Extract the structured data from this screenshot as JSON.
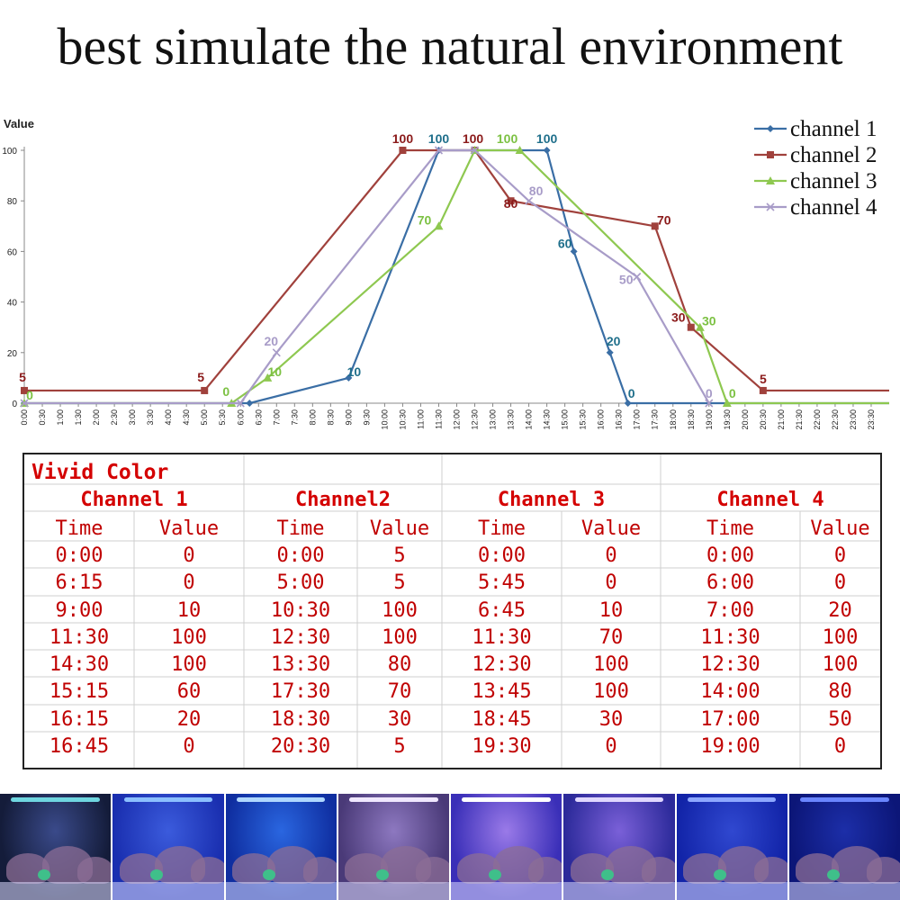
{
  "headline": "best simulate the natural environment",
  "chart_data": {
    "type": "line",
    "ylabel": "Value",
    "xlabel": "",
    "ylim": [
      0,
      100
    ],
    "yticks": [
      0,
      20,
      40,
      60,
      80,
      100
    ],
    "x_ticks": [
      "0:00",
      "0:30",
      "1:00",
      "1:30",
      "2:00",
      "2:30",
      "3:00",
      "3:30",
      "4:00",
      "4:30",
      "5:00",
      "5:30",
      "6:00",
      "6:30",
      "7:00",
      "7:30",
      "8:00",
      "8:30",
      "9:00",
      "9:30",
      "10:00",
      "10:30",
      "11:00",
      "11:30",
      "12:00",
      "12:30",
      "13:00",
      "13:30",
      "14:00",
      "14:30",
      "15:00",
      "15:30",
      "16:00",
      "16:30",
      "17:00",
      "17:30",
      "18:00",
      "18:30",
      "19:00",
      "19:30",
      "20:00",
      "20:30",
      "21:00",
      "21:30",
      "22:00",
      "22:30",
      "23:00",
      "23:30"
    ],
    "legend_position": "top-right",
    "grid": false,
    "series": [
      {
        "name": "channel 1",
        "color": "#3a6ea5",
        "marker": "diamond",
        "x": [
          "0:00",
          "6:15",
          "9:00",
          "11:30",
          "14:30",
          "15:15",
          "16:15",
          "16:45",
          "23:59"
        ],
        "y": [
          0,
          0,
          10,
          100,
          100,
          60,
          20,
          0,
          0
        ],
        "labels": [
          "",
          "",
          "10",
          "100",
          "100",
          "60",
          "20",
          "0",
          ""
        ],
        "label_color": "#1f6f8b"
      },
      {
        "name": "channel 2",
        "color": "#a0413c",
        "marker": "square",
        "x": [
          "0:00",
          "5:00",
          "10:30",
          "12:30",
          "13:30",
          "17:30",
          "18:30",
          "20:30",
          "23:59"
        ],
        "y": [
          5,
          5,
          100,
          100,
          80,
          70,
          30,
          5,
          5
        ],
        "labels": [
          "5",
          "5",
          "100",
          "100",
          "80",
          "70",
          "30",
          "5",
          ""
        ],
        "label_color": "#8b1a1a"
      },
      {
        "name": "channel 3",
        "color": "#8ec850",
        "marker": "triangle",
        "x": [
          "0:00",
          "5:45",
          "6:45",
          "11:30",
          "12:30",
          "13:45",
          "18:45",
          "19:30",
          "23:59"
        ],
        "y": [
          0,
          0,
          10,
          70,
          100,
          100,
          30,
          0,
          0
        ],
        "labels": [
          "0",
          "0",
          "10",
          "70",
          "",
          "100",
          "30",
          "0",
          ""
        ],
        "label_color": "#7cc143"
      },
      {
        "name": "channel 4",
        "color": "#a89cc8",
        "marker": "x",
        "x": [
          "0:00",
          "6:00",
          "7:00",
          "11:30",
          "12:30",
          "14:00",
          "17:00",
          "19:00"
        ],
        "y": [
          0,
          0,
          20,
          100,
          100,
          80,
          50,
          0
        ],
        "labels": [
          "",
          "",
          "20",
          "",
          "",
          "80",
          "50",
          "0"
        ],
        "label_color": "#a89cc8"
      }
    ]
  },
  "table": {
    "title": "Vivid Color",
    "title_color": "#d40000",
    "text_color": "#c00000",
    "time_header": "Time",
    "value_header": "Value",
    "channels": [
      {
        "name": "Channel 1",
        "rows": [
          [
            "0:00",
            "0"
          ],
          [
            "6:15",
            "0"
          ],
          [
            "9:00",
            "10"
          ],
          [
            "11:30",
            "100"
          ],
          [
            "14:30",
            "100"
          ],
          [
            "15:15",
            "60"
          ],
          [
            "16:15",
            "20"
          ],
          [
            "16:45",
            "0"
          ]
        ]
      },
      {
        "name": "Channel2",
        "rows": [
          [
            "0:00",
            "5"
          ],
          [
            "5:00",
            "5"
          ],
          [
            "10:30",
            "100"
          ],
          [
            "12:30",
            "100"
          ],
          [
            "13:30",
            "80"
          ],
          [
            "17:30",
            "70"
          ],
          [
            "18:30",
            "30"
          ],
          [
            "20:30",
            "5"
          ]
        ]
      },
      {
        "name": "Channel 3",
        "rows": [
          [
            "0:00",
            "0"
          ],
          [
            "5:45",
            "0"
          ],
          [
            "6:45",
            "10"
          ],
          [
            "11:30",
            "70"
          ],
          [
            "12:30",
            "100"
          ],
          [
            "13:45",
            "100"
          ],
          [
            "18:45",
            "30"
          ],
          [
            "19:30",
            "0"
          ]
        ]
      },
      {
        "name": "Channel 4",
        "rows": [
          [
            "0:00",
            "0"
          ],
          [
            "6:00",
            "0"
          ],
          [
            "7:00",
            "20"
          ],
          [
            "11:30",
            "100"
          ],
          [
            "12:30",
            "100"
          ],
          [
            "14:00",
            "80"
          ],
          [
            "17:00",
            "50"
          ],
          [
            "19:00",
            "0"
          ]
        ]
      }
    ]
  },
  "photo_strip": {
    "tanks": [
      {
        "water": "#141c3a",
        "glow": "#3a4a8a",
        "lamp": "#6fd6e0"
      },
      {
        "water": "#1a2fb0",
        "glow": "#3b5bdc",
        "lamp": "#8cc0ff"
      },
      {
        "water": "#0f2ea0",
        "glow": "#2a66e0",
        "lamp": "#b0d8ff"
      },
      {
        "water": "#4a3a78",
        "glow": "#8d78c0",
        "lamp": "#f0e8ff"
      },
      {
        "water": "#3a2fb8",
        "glow": "#9a7ae8",
        "lamp": "#ffffff"
      },
      {
        "water": "#2c2a9a",
        "glow": "#7a60d8",
        "lamp": "#e0d8ff"
      },
      {
        "water": "#1224a8",
        "glow": "#3048d0",
        "lamp": "#8ea8ff"
      },
      {
        "water": "#0c1678",
        "glow": "#1c2ea8",
        "lamp": "#6a86ff"
      }
    ]
  }
}
